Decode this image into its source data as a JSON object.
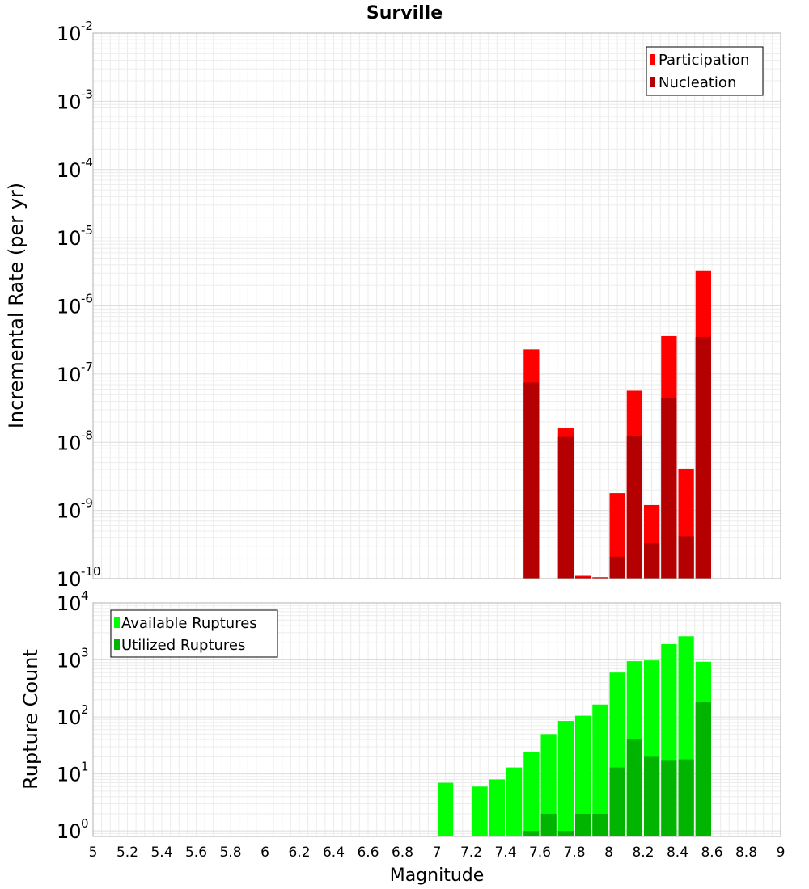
{
  "chart_data": [
    {
      "type": "bar",
      "title": "Surville",
      "xlabel": "",
      "ylabel": "Incremental Rate (per yr)",
      "xlim": [
        5,
        9
      ],
      "ylim": [
        1e-10,
        0.01
      ],
      "y_scale": "log",
      "y_tick_exponents": [
        -10,
        -9,
        -8,
        -7,
        -6,
        -5,
        -4,
        -3,
        -2
      ],
      "grid": true,
      "legend_position": "top-right",
      "bar_width": 0.1,
      "series": [
        {
          "name": "Participation",
          "color": "#ff0000",
          "x": [
            7.55,
            7.75,
            7.85,
            7.95,
            8.05,
            8.15,
            8.25,
            8.35,
            8.45,
            8.55
          ],
          "values": [
            2.3e-07,
            1.6e-08,
            1.1e-10,
            1.05e-10,
            1.8e-09,
            5.7e-08,
            1.2e-09,
            3.6e-07,
            4.1e-09,
            3.3e-06
          ]
        },
        {
          "name": "Nucleation",
          "color": "#b40000",
          "x": [
            7.55,
            7.75,
            7.85,
            7.95,
            8.05,
            8.15,
            8.25,
            8.35,
            8.45,
            8.55
          ],
          "values": [
            7.5e-08,
            1.2e-08,
            1.05e-10,
            1.02e-10,
            2.1e-10,
            1.25e-08,
            3.3e-10,
            4.4e-08,
            4.2e-10,
            3.5e-07
          ]
        }
      ]
    },
    {
      "type": "bar",
      "title": "",
      "xlabel": "Magnitude",
      "ylabel": "Rupture Count",
      "xlim": [
        5,
        9
      ],
      "ylim": [
        0.8,
        10000
      ],
      "y_scale": "log",
      "y_tick_exponents": [
        0,
        1,
        2,
        3,
        4
      ],
      "x_ticks": [
        "5",
        "5.2",
        "5.4",
        "5.6",
        "5.8",
        "6",
        "6.2",
        "6.4",
        "6.6",
        "6.8",
        "7",
        "7.2",
        "7.4",
        "7.6",
        "7.8",
        "8",
        "8.2",
        "8.4",
        "8.6",
        "8.8",
        "9"
      ],
      "grid": true,
      "legend_position": "top-left",
      "bar_width": 0.1,
      "series": [
        {
          "name": "Available Ruptures",
          "color": "#00ff00",
          "x": [
            7.05,
            7.25,
            7.35,
            7.45,
            7.55,
            7.65,
            7.75,
            7.85,
            7.95,
            8.05,
            8.15,
            8.25,
            8.35,
            8.45,
            8.55
          ],
          "values": [
            7,
            6,
            8,
            13,
            24,
            50,
            85,
            105,
            165,
            600,
            950,
            980,
            1900,
            2600,
            930
          ]
        },
        {
          "name": "Utilized Ruptures",
          "color": "#00b400",
          "x": [
            7.55,
            7.65,
            7.75,
            7.85,
            7.95,
            8.05,
            8.15,
            8.25,
            8.35,
            8.45,
            8.55
          ],
          "values": [
            1,
            2,
            1,
            2,
            2,
            13,
            40,
            20,
            17,
            18,
            180
          ]
        }
      ]
    }
  ]
}
